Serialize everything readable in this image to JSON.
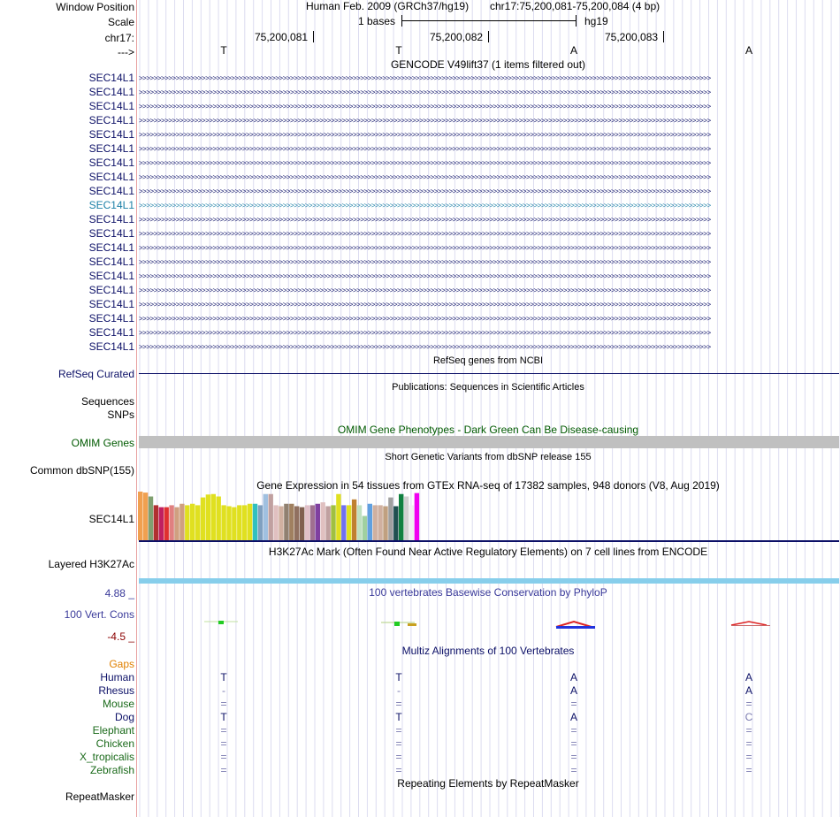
{
  "header": {
    "window_position_label": "Window Position",
    "assembly": "Human Feb. 2009 (GRCh37/hg19)",
    "position": "chr17:75,200,081-75,200,084 (4 bp)",
    "scale_label": "Scale",
    "scale_text": "1 bases",
    "scale_db": "hg19",
    "chrom_label": "chr17:",
    "strand_label": "--->",
    "ticks": [
      "75,200,081",
      "75,200,082",
      "75,200,083"
    ],
    "bases": [
      "T",
      "T",
      "A",
      "A"
    ]
  },
  "gencode": {
    "title": "GENCODE V49lift37 (1 items filtered out)",
    "genes": [
      "SEC14L1",
      "SEC14L1",
      "SEC14L1",
      "SEC14L1",
      "SEC14L1",
      "SEC14L1",
      "SEC14L1",
      "SEC14L1",
      "SEC14L1",
      "SEC14L1",
      "SEC14L1",
      "SEC14L1",
      "SEC14L1",
      "SEC14L1",
      "SEC14L1",
      "SEC14L1",
      "SEC14L1",
      "SEC14L1",
      "SEC14L1",
      "SEC14L1"
    ],
    "selected_index": 9,
    "arrow_glyphs": ">>>>>>>>>>>>>>>>>>>>>>>>>>>>>>>>>>>>>>>>>>>>>>>>>>>>>>>>>>>>>>>>>>>>>>>>>>>>>>>>>>>>>>>>>>>>>>>>>>>>>>>>>>>>>>>>>>>>>>>>>>>>>>>>>>>>>>>>>>>>>>>>>>>>>>>>>>>"
  },
  "refseq": {
    "title": "RefSeq genes from NCBI",
    "label": "RefSeq Curated"
  },
  "publications": {
    "title": "Publications: Sequences in Scientific Articles",
    "label1": "Sequences",
    "label2": "SNPs"
  },
  "omim": {
    "title": "OMIM Gene Phenotypes - Dark Green Can Be Disease-causing",
    "label": "OMIM Genes"
  },
  "dbsnp": {
    "title": "Short Genetic Variants from dbSNP release 155",
    "label": "Common dbSNP(155)"
  },
  "gtex": {
    "title": "Gene Expression in 54 tissues from GTEx RNA-seq of 17382 samples, 948 donors (V8, Aug 2019)",
    "label": "SEC14L1",
    "bar_fractions": [
      1.0,
      0.98,
      0.9,
      0.72,
      0.68,
      0.68,
      0.72,
      0.68,
      0.75,
      0.72,
      0.75,
      0.72,
      0.88,
      0.94,
      0.95,
      0.9,
      0.72,
      0.7,
      0.68,
      0.72,
      0.72,
      0.75,
      0.75,
      0.72,
      0.95,
      0.95,
      0.72,
      0.7,
      0.75,
      0.75,
      0.7,
      0.68,
      0.72,
      0.72,
      0.75,
      0.78,
      0.7,
      0.72,
      0.95,
      0.72,
      0.72,
      0.84,
      0.72,
      0.5,
      0.75,
      0.72,
      0.72,
      0.7,
      0.88,
      0.7,
      0.95,
      0.9,
      0.72,
      0.97
    ],
    "bar_colors": [
      "#f0a050",
      "#f0a050",
      "#80a070",
      "#b03030",
      "#c02060",
      "#e03030",
      "#e08080",
      "#d0a080",
      "#d0a080",
      "#e0e020",
      "#e0e020",
      "#e0e020",
      "#e0e020",
      "#e0e020",
      "#e0e020",
      "#e0e020",
      "#e0e020",
      "#e0e020",
      "#e0e020",
      "#e0e020",
      "#e0e020",
      "#e0e020",
      "#30c0c0",
      "#80a0c0",
      "#a0c0e0",
      "#c0a0a0",
      "#e0c0c0",
      "#d0b0a0",
      "#908070",
      "#a08060",
      "#907060",
      "#806050",
      "#e0c0c8",
      "#a07090",
      "#8040a0",
      "#e0c0c0",
      "#c0a0a0",
      "#a0c040",
      "#e0e020",
      "#7070f0",
      "#e0e020",
      "#c08030",
      "#c0e0c0",
      "#a0d0a0",
      "#60a0e0",
      "#d0b0a0",
      "#d0b0a0",
      "#c0a080",
      "#a0a0a0",
      "#205050",
      "#108040",
      "#d0d0d0",
      "#f0f0f0",
      "#f000f0"
    ]
  },
  "h3k27ac": {
    "title": "H3K27Ac Mark (Often Found Near Active Regulatory Elements) on 7 cell lines from ENCODE",
    "label": "Layered H3K27Ac"
  },
  "phylop": {
    "title": "100 vertebrates Basewise Conservation by PhyloP",
    "label": "100 Vert. Cons",
    "max": "4.88 _",
    "min": "-4.5 _"
  },
  "multiz": {
    "title": "Multiz Alignments of 100 Vertebrates",
    "gaps_label": "Gaps",
    "species": [
      {
        "name": "Human",
        "bases": [
          "T",
          "T",
          "A",
          "A"
        ]
      },
      {
        "name": "Rhesus",
        "bases": [
          "-",
          "-",
          "A",
          "A"
        ]
      },
      {
        "name": "Mouse",
        "bases": [
          "=",
          "=",
          "=",
          "="
        ]
      },
      {
        "name": "Dog",
        "bases": [
          "T",
          "T",
          "A",
          "C"
        ]
      },
      {
        "name": "Elephant",
        "bases": [
          "=",
          "=",
          "=",
          "="
        ]
      },
      {
        "name": "Chicken",
        "bases": [
          "=",
          "=",
          "=",
          "="
        ]
      },
      {
        "name": "X_tropicalis",
        "bases": [
          "=",
          "=",
          "=",
          "="
        ]
      },
      {
        "name": "Zebrafish",
        "bases": [
          "=",
          "=",
          "=",
          "="
        ]
      }
    ]
  },
  "repeatmasker": {
    "title": "Repeating Elements by RepeatMasker",
    "label": "RepeatMasker"
  },
  "colors": {
    "navy": "#0c1067",
    "selected": "#1a7fa6",
    "omim_green": "#005a00",
    "omim_bar": "#c0c0c0",
    "h3k27ac_bar": "#87ceeb",
    "gaps_orange": "#e08000",
    "phylop_min": "#8b0000",
    "species_dark": "#0c1067",
    "species_green": "#1a6a1a"
  }
}
